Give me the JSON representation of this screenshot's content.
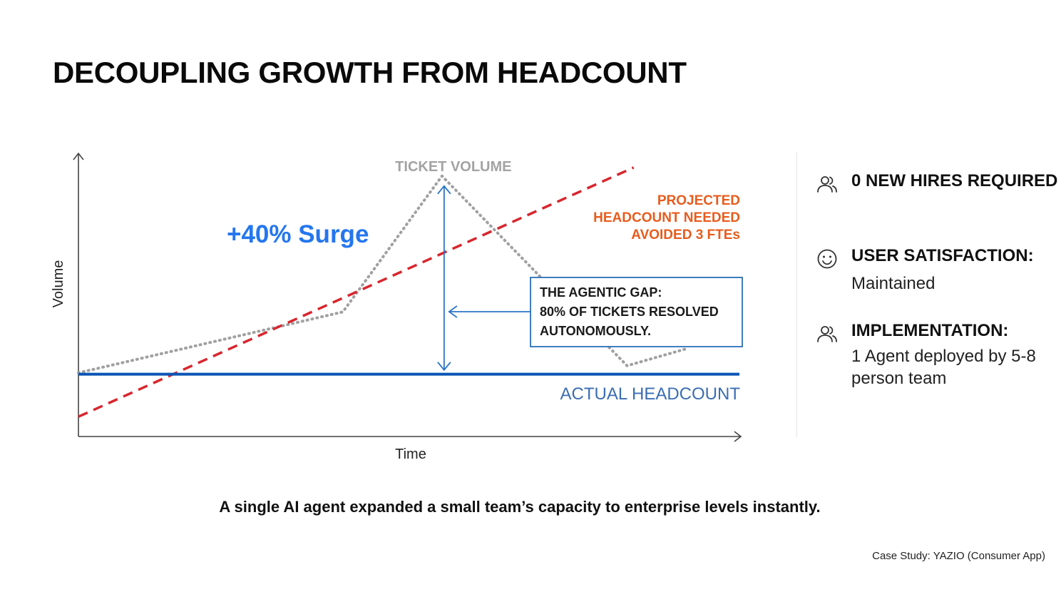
{
  "title": "DECOUPLING GROWTH FROM HEADCOUNT",
  "chart_data": {
    "type": "line",
    "xlabel": "Time",
    "ylabel": "Volume",
    "xlim": [
      0,
      10
    ],
    "ylim": [
      0,
      10
    ],
    "series": [
      {
        "name": "TICKET VOLUME",
        "style": "dotted",
        "color": "#a0a0a0",
        "x": [
          0,
          4,
          5.5,
          8.3,
          9.2
        ],
        "y": [
          2.25,
          4.4,
          9.2,
          2.5,
          3.1
        ]
      },
      {
        "name": "PROJECTED HEADCOUNT NEEDED",
        "style": "dashed",
        "color": "#d8262e",
        "x": [
          0,
          8.4
        ],
        "y": [
          0.7,
          9.5
        ]
      },
      {
        "name": "ACTUAL HEADCOUNT",
        "style": "solid",
        "color": "#0b55b5",
        "x": [
          0,
          10
        ],
        "y": [
          2.2,
          2.2
        ]
      }
    ],
    "annotations": {
      "ticket_volume_label": "TICKET VOLUME",
      "surge_label": "+40% Surge",
      "projected_lines": [
        "PROJECTED",
        "HEADCOUNT NEEDED",
        "AVOIDED 3 FTEs"
      ],
      "actual_label": "ACTUAL HEADCOUNT",
      "gap_lines": [
        "THE AGENTIC GAP:",
        "80% OF TICKETS RESOLVED",
        "AUTONOMOUSLY."
      ]
    },
    "grid": false
  },
  "stats": [
    {
      "icon": "users-icon",
      "head": "0 NEW HIRES REQUIRED",
      "body": ""
    },
    {
      "icon": "smiley-icon",
      "head": "USER SATISFACTION:",
      "body": "Maintained"
    },
    {
      "icon": "users-icon",
      "head": "IMPLEMENTATION:",
      "body": "1 Agent deployed by 5-8 person team"
    }
  ],
  "caption": "A single AI agent expanded a small team’s capacity to enterprise levels instantly.",
  "source": "Case Study: YAZIO (Consumer App)",
  "colors": {
    "surge": "#2476ee",
    "projected": "#e85b1c",
    "actual_text": "#3b6db3",
    "gap_arrow": "#2a74c5",
    "gap_box_border": "#2a6fba"
  }
}
